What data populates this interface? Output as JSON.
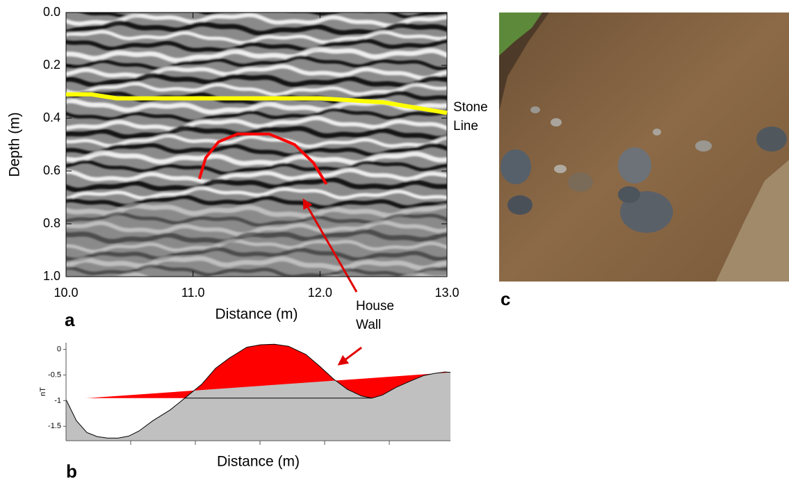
{
  "chart_data": [
    {
      "type": "line",
      "panel_label": "a",
      "x_label": "Distance (m)",
      "y_label": "Depth (m)",
      "xlim": [
        10,
        13
      ],
      "xticks": [
        {
          "value": 10,
          "label": "10.0"
        },
        {
          "value": 11,
          "label": "11.0"
        },
        {
          "value": 12,
          "label": "12.0"
        },
        {
          "value": 13,
          "label": "13.0"
        }
      ],
      "ylim": [
        0,
        1
      ],
      "y_reversed": true,
      "yticks": [
        {
          "value": 0,
          "label": "0.0"
        },
        0.2,
        0.4,
        0.6,
        0.8,
        {
          "value": 1,
          "label": "1.0"
        }
      ],
      "series": [
        {
          "color": "#ffff00",
          "x": [
            10.0,
            10.2,
            10.4,
            11.0,
            12.0,
            12.5,
            13.0
          ],
          "values": [
            0.31,
            0.31,
            0.325,
            0.325,
            0.325,
            0.34,
            0.38
          ]
        },
        {
          "color": "#ff0000",
          "x": [
            11.05,
            11.1,
            11.2,
            11.35,
            11.6,
            11.8,
            11.95,
            12.05
          ],
          "values": [
            0.63,
            0.55,
            0.49,
            0.46,
            0.46,
            0.5,
            0.57,
            0.65
          ]
        }
      ],
      "annotations": [
        {
          "lines": [
            "Stone",
            "Line"
          ]
        },
        {
          "lines": [
            "House",
            "Wall"
          ]
        }
      ]
    },
    {
      "type": "area",
      "panel_label": "b",
      "x_label": "Distance (m)",
      "y_label": "nT",
      "x": [
        0,
        2.7,
        5.4,
        8.1,
        10.8,
        13.6,
        16.3,
        19.0,
        22.6,
        27.1,
        30.9,
        35.3,
        38.9,
        42.5,
        47.0,
        50.6,
        54.2,
        57.9,
        62.4,
        66.0,
        69.6,
        73.2,
        76.9,
        79.6,
        82.3,
        85.9,
        89.5,
        93.1,
        95.8,
        98.6,
        100
      ],
      "values": [
        -0.98,
        -1.39,
        -1.62,
        -1.7,
        -1.73,
        -1.73,
        -1.69,
        -1.59,
        -1.39,
        -1.18,
        -0.95,
        -0.68,
        -0.37,
        -0.17,
        0.04,
        0.09,
        0.1,
        0.06,
        -0.1,
        -0.33,
        -0.58,
        -0.78,
        -0.91,
        -0.95,
        -0.89,
        -0.74,
        -0.62,
        -0.51,
        -0.47,
        -0.44,
        -0.45
      ],
      "color": "#c0c0c0",
      "highlight_level": -0.95,
      "highlight_color": "#ff0000",
      "xlim": [
        0,
        100
      ],
      "ylim": [
        -1.78,
        0.13
      ],
      "yticks": [
        0,
        -0.5,
        -1,
        -1.5
      ]
    }
  ],
  "photo": {
    "panel_label": "c"
  }
}
